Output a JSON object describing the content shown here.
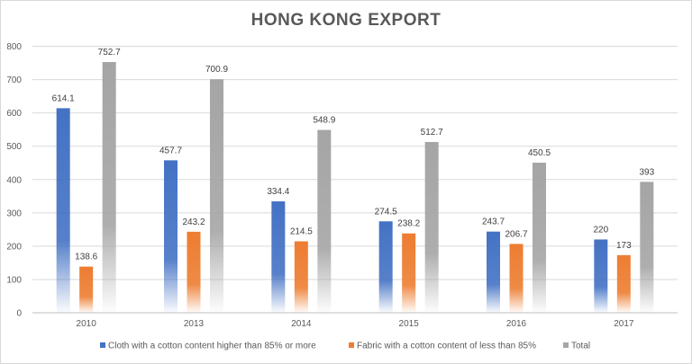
{
  "chart_data": {
    "type": "bar",
    "title": "HONG KONG EXPORT",
    "categories": [
      "2010",
      "2013",
      "2014",
      "2015",
      "2016",
      "2017"
    ],
    "series": [
      {
        "name": "Cloth with a cotton content higher than 85% or more",
        "color": "#4472C4",
        "values": [
          614.1,
          457.7,
          334.4,
          274.5,
          243.7,
          220
        ]
      },
      {
        "name": "Fabric with a cotton content of less than 85%",
        "color": "#ED7D31",
        "values": [
          138.6,
          243.2,
          214.5,
          238.2,
          206.7,
          173
        ]
      },
      {
        "name": "Total",
        "color": "#A5A5A5",
        "values": [
          752.7,
          700.9,
          548.9,
          512.7,
          450.5,
          393
        ]
      }
    ],
    "yticks": [
      0,
      100,
      200,
      300,
      400,
      500,
      600,
      700,
      800
    ],
    "ylim": [
      0,
      800
    ],
    "grid": true,
    "legend": "bottom",
    "xlabel": "",
    "ylabel": ""
  }
}
